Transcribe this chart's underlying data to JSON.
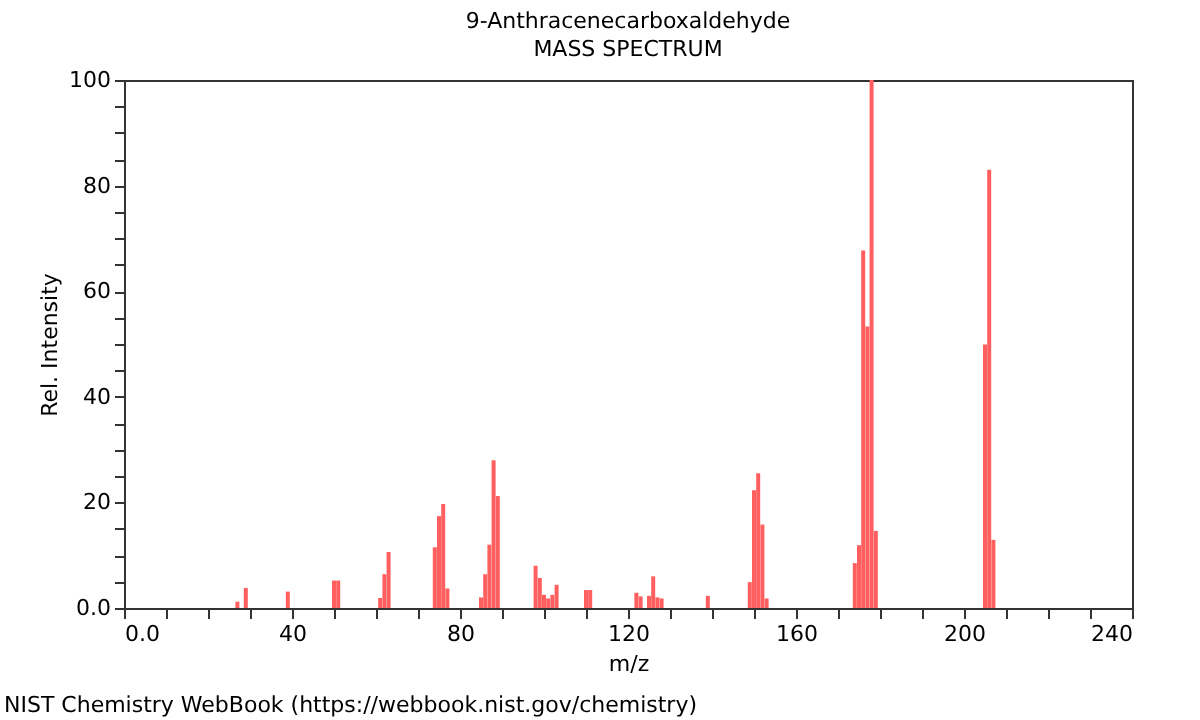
{
  "chart_data": {
    "type": "bar",
    "title": "9-Anthracenecarboxaldehyde",
    "subtitle": "MASS SPECTRUM",
    "xlabel": "m/z",
    "ylabel": "Rel. Intensity",
    "x": [
      27,
      29,
      39,
      50,
      51,
      61,
      62,
      63,
      74,
      75,
      76,
      77,
      85,
      86,
      87,
      88,
      89,
      98,
      99,
      100,
      101,
      102,
      103,
      110,
      111,
      122,
      123,
      125,
      126,
      127,
      128,
      139,
      149,
      150,
      151,
      152,
      153,
      174,
      175,
      176,
      177,
      178,
      179,
      205,
      206,
      207
    ],
    "values": [
      1.2,
      3.8,
      3.1,
      5.2,
      5.2,
      1.9,
      6.4,
      10.6,
      11.5,
      17.4,
      19.7,
      3.7,
      2,
      6.4,
      12,
      28,
      21.2,
      8,
      5.7,
      2.5,
      1.8,
      2.5,
      4.4,
      3.4,
      3.4,
      2.9,
      2.2,
      2.3,
      6,
      2,
      1.8,
      2.3,
      4.9,
      22.3,
      25.5,
      15.8,
      1.8,
      8.5,
      11.9,
      67.7,
      53.3,
      100,
      14.6,
      49.9,
      83,
      12.9
    ],
    "color": "#ff5f5f",
    "xlim": [
      0,
      240
    ],
    "xticks": [
      {
        "value": 0,
        "label": "0.0"
      },
      {
        "value": 10,
        "label": null
      },
      {
        "value": 20,
        "label": null
      },
      {
        "value": 30,
        "label": null
      },
      40,
      {
        "value": 50,
        "label": null
      },
      {
        "value": 60,
        "label": null
      },
      {
        "value": 70,
        "label": null
      },
      80,
      {
        "value": 90,
        "label": null
      },
      {
        "value": 100,
        "label": null
      },
      {
        "value": 110,
        "label": null
      },
      120,
      {
        "value": 130,
        "label": null
      },
      {
        "value": 140,
        "label": null
      },
      {
        "value": 150,
        "label": null
      },
      160,
      {
        "value": 170,
        "label": null
      },
      {
        "value": 180,
        "label": null
      },
      {
        "value": 190,
        "label": null
      },
      200,
      {
        "value": 210,
        "label": null
      },
      {
        "value": 220,
        "label": null
      },
      {
        "value": 230,
        "label": null
      },
      240
    ],
    "ylim": [
      0,
      100
    ],
    "yticks": [
      {
        "value": 0,
        "label": "0.0"
      },
      {
        "value": 5,
        "label": null
      },
      {
        "value": 10,
        "label": null
      },
      {
        "value": 15,
        "label": null
      },
      20,
      {
        "value": 25,
        "label": null
      },
      {
        "value": 30,
        "label": null
      },
      {
        "value": 35,
        "label": null
      },
      40,
      {
        "value": 45,
        "label": null
      },
      {
        "value": 50,
        "label": null
      },
      {
        "value": 55,
        "label": null
      },
      60,
      {
        "value": 65,
        "label": null
      },
      {
        "value": 70,
        "label": null
      },
      {
        "value": 75,
        "label": null
      },
      80,
      {
        "value": 85,
        "label": null
      },
      {
        "value": 90,
        "label": null
      },
      {
        "value": 95,
        "label": null
      },
      100
    ],
    "grid": false,
    "annotations": [
      "NIST Chemistry WebBook (https://webbook.nist.gov/chemistry)"
    ]
  }
}
